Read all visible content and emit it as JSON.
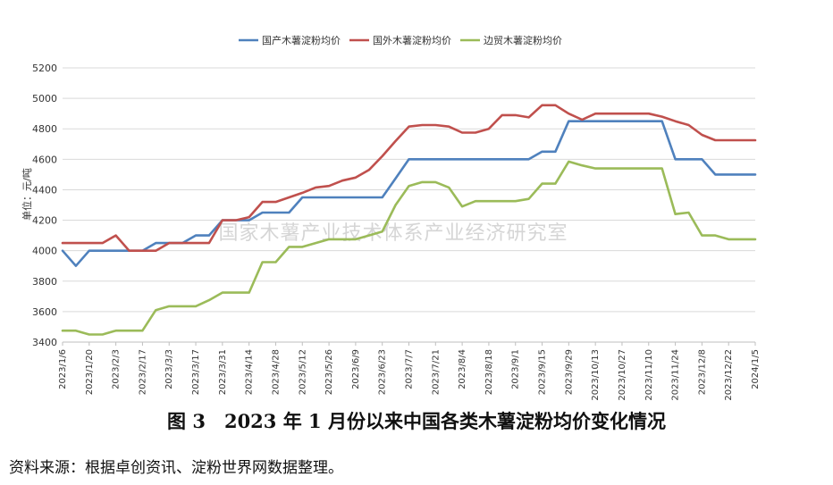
{
  "chart_data": {
    "type": "line",
    "ylabel": "单位：元/吨",
    "ylim": [
      3400,
      5200
    ],
    "yticks": [
      3400,
      3600,
      3800,
      4000,
      4200,
      4400,
      4600,
      4800,
      5000,
      5200
    ],
    "grid": "horizontal",
    "legend_position": "top-center",
    "x_tick_labels": [
      "2023/1/6",
      "2023/1/20",
      "2023/2/3",
      "2023/2/17",
      "2023/3/3",
      "2023/3/17",
      "2023/3/31",
      "2023/4/14",
      "2023/4/28",
      "2023/5/12",
      "2023/5/26",
      "2023/6/9",
      "2023/6/23",
      "2023/7/7",
      "2023/7/21",
      "2023/8/4",
      "2023/8/18",
      "2023/9/1",
      "2023/9/15",
      "2023/9/29",
      "2023/10/13",
      "2023/10/27",
      "2023/11/10",
      "2023/11/24",
      "2023/12/8",
      "2023/12/22",
      "2024/1/5"
    ],
    "x": [
      "2023/1/6",
      "2023/1/13",
      "2023/1/20",
      "2023/1/27",
      "2023/2/3",
      "2023/2/10",
      "2023/2/17",
      "2023/2/24",
      "2023/3/3",
      "2023/3/10",
      "2023/3/17",
      "2023/3/24",
      "2023/3/31",
      "2023/4/7",
      "2023/4/14",
      "2023/4/21",
      "2023/4/28",
      "2023/5/5",
      "2023/5/12",
      "2023/5/19",
      "2023/5/26",
      "2023/6/2",
      "2023/6/9",
      "2023/6/16",
      "2023/6/23",
      "2023/6/30",
      "2023/7/7",
      "2023/7/14",
      "2023/7/21",
      "2023/7/28",
      "2023/8/4",
      "2023/8/11",
      "2023/8/18",
      "2023/8/25",
      "2023/9/1",
      "2023/9/8",
      "2023/9/15",
      "2023/9/22",
      "2023/9/29",
      "2023/10/6",
      "2023/10/13",
      "2023/10/20",
      "2023/10/27",
      "2023/11/3",
      "2023/11/10",
      "2023/11/17",
      "2023/11/24",
      "2023/12/1",
      "2023/12/8",
      "2023/12/15",
      "2023/12/22",
      "2023/12/29",
      "2024/1/5"
    ],
    "series": [
      {
        "name": "国产木薯淀粉均价",
        "color": "#4f81bd",
        "values": [
          4000,
          3900,
          4000,
          4000,
          4000,
          4000,
          4000,
          4050,
          4050,
          4050,
          4100,
          4100,
          4200,
          4200,
          4200,
          4250,
          4250,
          4250,
          4350,
          4350,
          4350,
          4350,
          4350,
          4350,
          4350,
          4475,
          4600,
          4600,
          4600,
          4600,
          4600,
          4600,
          4600,
          4600,
          4600,
          4600,
          4650,
          4650,
          4850,
          4850,
          4850,
          4850,
          4850,
          4850,
          4850,
          4850,
          4600,
          4600,
          4600,
          4500,
          4500,
          4500,
          4500
        ]
      },
      {
        "name": "国外木薯淀粉均价",
        "color": "#c0504d",
        "values": [
          4050,
          4050,
          4050,
          4050,
          4100,
          4000,
          4000,
          4000,
          4050,
          4050,
          4050,
          4050,
          4200,
          4200,
          4220,
          4320,
          4320,
          4350,
          4380,
          4415,
          4425,
          4460,
          4480,
          4530,
          4620,
          4720,
          4815,
          4825,
          4825,
          4815,
          4775,
          4775,
          4800,
          4890,
          4890,
          4875,
          4955,
          4955,
          4900,
          4860,
          4900,
          4900,
          4900,
          4900,
          4900,
          4880,
          4850,
          4825,
          4760,
          4725,
          4725,
          4725,
          4725
        ]
      },
      {
        "name": "边贸木薯淀粉均价",
        "color": "#9bbb59",
        "values": [
          3475,
          3475,
          3450,
          3450,
          3475,
          3475,
          3475,
          3610,
          3635,
          3635,
          3635,
          3675,
          3725,
          3725,
          3725,
          3925,
          3925,
          4025,
          4025,
          4050,
          4075,
          4075,
          4075,
          4100,
          4125,
          4300,
          4425,
          4450,
          4450,
          4415,
          4290,
          4325,
          4325,
          4325,
          4325,
          4340,
          4440,
          4440,
          4585,
          4560,
          4540,
          4540,
          4540,
          4540,
          4540,
          4540,
          4240,
          4250,
          4100,
          4100,
          4075,
          4075,
          4075
        ]
      }
    ]
  },
  "watermark": "国家木薯产业技术体系产业经济研究室",
  "caption": "图 3　2023 年 1 月份以来中国各类木薯淀粉均价变化情况",
  "source": "资料来源：根据卓创资讯、淀粉世界网数据整理。"
}
